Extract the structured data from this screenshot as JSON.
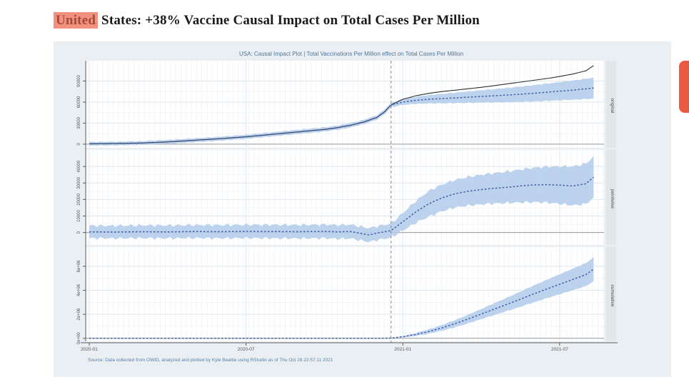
{
  "page": {
    "title_highlight": "United",
    "title_rest": " States: +38% Vaccine Causal Impact on Total Cases Per Million"
  },
  "colors": {
    "highlight_bg": "#f2917e",
    "highlight_text": "#a34b38",
    "card_bg": "#e9eff3",
    "edge_tab": "#e85a41",
    "ribbon": "#b5cdeb",
    "pred_line": "#3f5fa7",
    "actual_line": "#2f2f2f",
    "grid_major": "#dfe7ee",
    "grid_minor": "#eef2f6",
    "zero_line": "#9b9b9b",
    "axis": "#5a5a5a",
    "tick_text": "#555555",
    "title_text": "#53779c",
    "strip_bg": "#e2e7ea",
    "strip_text": "#4a4a4a",
    "intervention_line": "#8a8a8a"
  },
  "chart_data": {
    "type": "line",
    "title": "USA: Causal Impact Plot | Total Vaccinations Per Million effect on Total Cases Per Million",
    "caption": "Source: Data collected from OWID, analyzed and plotted by Kyle Beattie using RStudio as of Thu Oct 28 22:57:11 2021",
    "x_axis": {
      "tick_labels": [
        "2020-01",
        "2020-07",
        "2021-01",
        "2021-07"
      ],
      "tick_months": [
        0,
        6,
        12,
        18
      ],
      "month_range": [
        0,
        19.3
      ]
    },
    "intervention_month": 11.55,
    "legend": "none",
    "panels": [
      {
        "label": "original",
        "ylim": [
          -5200,
          119000
        ],
        "yticks": [
          0,
          30000,
          60000,
          90000
        ],
        "ytick_labels": [
          "0",
          "30000",
          "60000",
          "90000"
        ],
        "noise_amp": 700,
        "actual": {
          "m": [
            0,
            1,
            2,
            3,
            4,
            5,
            6,
            7,
            8,
            9,
            9.5,
            10,
            10.5,
            11,
            11.3,
            11.55,
            12,
            12.5,
            13,
            13.5,
            14,
            14.5,
            15,
            15.5,
            16,
            16.5,
            17,
            17.5,
            18,
            18.5,
            19,
            19.3
          ],
          "v": [
            500,
            900,
            1600,
            3200,
            5500,
            7800,
            10500,
            14000,
            17500,
            21000,
            23500,
            27000,
            31500,
            38000,
            46000,
            56000,
            64000,
            69000,
            72500,
            75000,
            77000,
            79000,
            81000,
            83500,
            86000,
            88500,
            91000,
            93500,
            96500,
            100000,
            104500,
            112000
          ]
        },
        "pred": {
          "m": [
            0,
            1,
            2,
            3,
            4,
            5,
            6,
            7,
            8,
            9,
            9.5,
            10,
            10.5,
            11,
            11.3,
            11.55,
            12,
            12.5,
            13,
            13.5,
            14,
            14.5,
            15,
            15.5,
            16,
            16.5,
            17,
            17.5,
            18,
            18.5,
            19,
            19.3
          ],
          "v": [
            500,
            900,
            1600,
            3200,
            5500,
            7800,
            10500,
            14000,
            17500,
            21000,
            23500,
            27000,
            31500,
            38000,
            46000,
            56000,
            60000,
            62500,
            64000,
            65000,
            66000,
            67000,
            68000,
            69000,
            70000,
            71200,
            72500,
            74000,
            75500,
            77000,
            78800,
            80000
          ]
        },
        "halfwidth": {
          "m": [
            0,
            11.55,
            13,
            19.3
          ],
          "v": [
            2600,
            3200,
            6000,
            14800
          ]
        }
      },
      {
        "label": "pointwise",
        "ylim": [
          -7500,
          50000
        ],
        "yticks": [
          0,
          10000,
          20000,
          30000,
          40000
        ],
        "ytick_labels": [
          "0",
          "10000",
          "20000",
          "30000",
          "40000"
        ],
        "noise_amp": 1000,
        "pred": {
          "m": [
            0,
            1,
            2,
            3,
            4,
            5,
            6,
            7,
            8,
            9,
            9.5,
            10,
            10.3,
            10.7,
            11,
            11.55,
            12,
            12.5,
            13,
            13.5,
            14,
            14.5,
            15,
            15.5,
            16,
            16.5,
            17,
            17.5,
            18,
            18.5,
            19,
            19.3
          ],
          "v": [
            400,
            300,
            500,
            400,
            600,
            500,
            700,
            600,
            500,
            700,
            400,
            600,
            -300,
            -1500,
            -400,
            1200,
            6500,
            12500,
            17500,
            21000,
            23500,
            25000,
            26000,
            26800,
            27400,
            28200,
            28800,
            29000,
            28700,
            28200,
            29500,
            33500
          ]
        },
        "halfwidth": {
          "m": [
            0,
            11.55,
            13,
            16,
            19.3
          ],
          "v": [
            3800,
            4200,
            7800,
            9500,
            12500
          ]
        }
      },
      {
        "label": "cumulative",
        "ylim": [
          -250000,
          7600000
        ],
        "yticks": [
          0,
          2000000,
          4000000,
          6000000
        ],
        "ytick_labels": [
          "0e+00",
          "2e+06",
          "4e+06",
          "6e+06"
        ],
        "noise_amp": 40000,
        "pred": {
          "m": [
            0,
            11,
            11.55,
            12,
            12.5,
            13,
            13.5,
            14,
            14.5,
            15,
            15.5,
            16,
            16.5,
            17,
            17.5,
            18,
            18.5,
            19,
            19.3
          ],
          "v": [
            0,
            0,
            20000,
            130000,
            320000,
            570000,
            870000,
            1220000,
            1610000,
            2020000,
            2430000,
            2840000,
            3260000,
            3690000,
            4100000,
            4500000,
            4900000,
            5300000,
            5750000
          ]
        },
        "halfwidth": {
          "m": [
            0,
            11.55,
            13,
            15,
            17,
            19.3
          ],
          "v": [
            0,
            0,
            180000,
            420000,
            700000,
            1000000
          ]
        }
      }
    ]
  }
}
